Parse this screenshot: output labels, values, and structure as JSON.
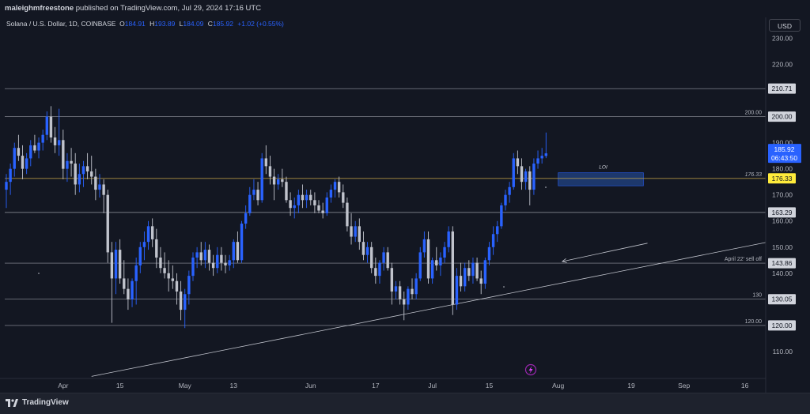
{
  "header": {
    "author": "maleighmfreestone",
    "published_text": "published on TradingView.com, Jul 29, 2024 17:16 UTC"
  },
  "symbol": {
    "title": "Solana / U.S. Dollar, 1D, COINBASE",
    "open_label": "O",
    "open": "184.91",
    "high_label": "H",
    "high": "193.89",
    "low_label": "L",
    "low": "184.09",
    "close_label": "C",
    "close": "185.92",
    "change": "+1.02 (+0.55%)"
  },
  "currency_button": "USD",
  "footer": {
    "brand": "TradingView"
  },
  "colors": {
    "background": "#131722",
    "up_candle": "#2962ff",
    "down_candle": "#c0c3cc",
    "level_line": "#c0c3cc",
    "key_level_line": "#c8a84a",
    "current_price_badge": "#2962ff",
    "key_level_badge": "#ffeb3b",
    "loi_box": "#1e3a70"
  },
  "chart_data": {
    "type": "candlestick",
    "symbol": "Solana / U.S. Dollar",
    "interval": "1D",
    "exchange": "COINBASE",
    "ylim": [
      100,
      238
    ],
    "y_ticks": [
      "230.00",
      "220.00",
      "210.00",
      "200.00",
      "190.00",
      "180.00",
      "170.00",
      "160.00",
      "150.00",
      "140.00",
      "120.00",
      "110.00"
    ],
    "x_ticks": [
      "Apr",
      "15",
      "May",
      "13",
      "Jun",
      "17",
      "Jul",
      "15",
      "Aug",
      "19",
      "Sep",
      "16"
    ],
    "current_price": {
      "value": "185.92",
      "countdown": "06:43:50"
    },
    "levels": [
      {
        "value": 210.71,
        "label": "",
        "badge": "210.71",
        "style": "white"
      },
      {
        "value": 200.0,
        "label": "200.00",
        "badge": "200.00",
        "style": "white"
      },
      {
        "value": 176.33,
        "label": "176.33",
        "badge": "176.33",
        "style": "key"
      },
      {
        "value": 163.29,
        "label": "",
        "badge": "163.29",
        "style": "white"
      },
      {
        "value": 143.86,
        "label": "April 22' sell off",
        "badge": "143.86",
        "style": "white"
      },
      {
        "value": 130.05,
        "label": "130",
        "badge": "130.05",
        "style": "white"
      },
      {
        "value": 120.0,
        "label": "120.00",
        "badge": "120.00",
        "style": "white"
      }
    ],
    "zone": {
      "label": "LOI",
      "top": 178.5,
      "bottom": 173.5,
      "from_date": "2024-08-01",
      "to_date": "2024-08-22"
    },
    "trendline": {
      "from": [
        "2024-04-08",
        100.5
      ],
      "to": [
        "2024-09-30",
        154.5
      ]
    },
    "arrow": {
      "from": [
        "2024-08-23",
        151.5
      ],
      "to": [
        "2024-08-02",
        144.5
      ]
    },
    "candles": [
      [
        "2024-03-18",
        172,
        178,
        165,
        175
      ],
      [
        "2024-03-19",
        175,
        182,
        170,
        180
      ],
      [
        "2024-03-20",
        180,
        190,
        177,
        188
      ],
      [
        "2024-03-21",
        188,
        193,
        183,
        185
      ],
      [
        "2024-03-22",
        185,
        189,
        176,
        180
      ],
      [
        "2024-03-23",
        180,
        186,
        178,
        184
      ],
      [
        "2024-03-24",
        184,
        191,
        181,
        189
      ],
      [
        "2024-03-25",
        189,
        193,
        186,
        187
      ],
      [
        "2024-03-26",
        187,
        192,
        184,
        190
      ],
      [
        "2024-03-27",
        190,
        195,
        187,
        193
      ],
      [
        "2024-03-28",
        193,
        202,
        191,
        200
      ],
      [
        "2024-03-29",
        200,
        204,
        190,
        192
      ],
      [
        "2024-03-30",
        192,
        196,
        186,
        189
      ],
      [
        "2024-03-31",
        189,
        203,
        185,
        191
      ],
      [
        "2024-04-01",
        191,
        195,
        176,
        180
      ],
      [
        "2024-04-02",
        180,
        186,
        175,
        183
      ],
      [
        "2024-04-03",
        183,
        188,
        177,
        182
      ],
      [
        "2024-04-04",
        182,
        186,
        170,
        174
      ],
      [
        "2024-04-05",
        174,
        182,
        171,
        178
      ],
      [
        "2024-04-06",
        178,
        183,
        173,
        181
      ],
      [
        "2024-04-07",
        181,
        186,
        176,
        179
      ],
      [
        "2024-04-08",
        179,
        185,
        174,
        177
      ],
      [
        "2024-04-09",
        177,
        180,
        168,
        172
      ],
      [
        "2024-04-10",
        172,
        178,
        169,
        174
      ],
      [
        "2024-04-11",
        174,
        176,
        163,
        170
      ],
      [
        "2024-04-12",
        170,
        172,
        144,
        148
      ],
      [
        "2024-04-13",
        148,
        152,
        121,
        138
      ],
      [
        "2024-04-14",
        138,
        152,
        132,
        149
      ],
      [
        "2024-04-15",
        149,
        153,
        136,
        138
      ],
      [
        "2024-04-16",
        138,
        145,
        132,
        134
      ],
      [
        "2024-04-17",
        134,
        138,
        126,
        130
      ],
      [
        "2024-04-18",
        130,
        138,
        127,
        137
      ],
      [
        "2024-04-19",
        137,
        146,
        128,
        143
      ],
      [
        "2024-04-20",
        143,
        152,
        140,
        150
      ],
      [
        "2024-04-21",
        150,
        156,
        145,
        152
      ],
      [
        "2024-04-22",
        152,
        160,
        149,
        158
      ],
      [
        "2024-04-23",
        158,
        161,
        150,
        153
      ],
      [
        "2024-04-24",
        153,
        157,
        142,
        146
      ],
      [
        "2024-04-25",
        146,
        150,
        140,
        142
      ],
      [
        "2024-04-26",
        142,
        148,
        138,
        140
      ],
      [
        "2024-04-27",
        140,
        145,
        133,
        138
      ],
      [
        "2024-04-28",
        138,
        143,
        134,
        137
      ],
      [
        "2024-04-29",
        137,
        140,
        128,
        133
      ],
      [
        "2024-04-30",
        133,
        137,
        122,
        126
      ],
      [
        "2024-05-01",
        126,
        134,
        119,
        132
      ],
      [
        "2024-05-02",
        132,
        141,
        128,
        139
      ],
      [
        "2024-05-03",
        139,
        148,
        137,
        146
      ],
      [
        "2024-05-04",
        146,
        150,
        142,
        148
      ],
      [
        "2024-05-05",
        148,
        152,
        143,
        145
      ],
      [
        "2024-05-06",
        145,
        152,
        142,
        149
      ],
      [
        "2024-05-07",
        149,
        151,
        141,
        144
      ],
      [
        "2024-05-08",
        144,
        147,
        139,
        142
      ],
      [
        "2024-05-09",
        142,
        150,
        140,
        147
      ],
      [
        "2024-05-10",
        147,
        150,
        141,
        144
      ],
      [
        "2024-05-11",
        144,
        147,
        140,
        143
      ],
      [
        "2024-05-12",
        143,
        147,
        141,
        145
      ],
      [
        "2024-05-13",
        145,
        153,
        142,
        152
      ],
      [
        "2024-05-14",
        152,
        156,
        144,
        145
      ],
      [
        "2024-05-15",
        145,
        160,
        144,
        159
      ],
      [
        "2024-05-16",
        159,
        166,
        157,
        163
      ],
      [
        "2024-05-17",
        163,
        173,
        162,
        170
      ],
      [
        "2024-05-18",
        170,
        176,
        168,
        172
      ],
      [
        "2024-05-19",
        172,
        175,
        166,
        168
      ],
      [
        "2024-05-20",
        168,
        186,
        167,
        184
      ],
      [
        "2024-05-21",
        184,
        189,
        178,
        181
      ],
      [
        "2024-05-22",
        181,
        185,
        174,
        177
      ],
      [
        "2024-05-23",
        177,
        180,
        168,
        174
      ],
      [
        "2024-05-24",
        174,
        178,
        172,
        176
      ],
      [
        "2024-05-25",
        176,
        180,
        173,
        175
      ],
      [
        "2024-05-26",
        175,
        177,
        167,
        168
      ],
      [
        "2024-05-27",
        168,
        171,
        162,
        165
      ],
      [
        "2024-05-28",
        165,
        169,
        161,
        166
      ],
      [
        "2024-05-29",
        166,
        172,
        163,
        170
      ],
      [
        "2024-05-30",
        170,
        174,
        165,
        168
      ],
      [
        "2024-05-31",
        168,
        172,
        165,
        170
      ],
      [
        "2024-06-01",
        170,
        172,
        166,
        168
      ],
      [
        "2024-06-02",
        168,
        171,
        163,
        166
      ],
      [
        "2024-06-03",
        166,
        168,
        163,
        164
      ],
      [
        "2024-06-04",
        164,
        167,
        161,
        163
      ],
      [
        "2024-06-05",
        163,
        171,
        162,
        169
      ],
      [
        "2024-06-06",
        169,
        174,
        167,
        172
      ],
      [
        "2024-06-07",
        172,
        176,
        169,
        175
      ],
      [
        "2024-06-08",
        175,
        177,
        169,
        171
      ],
      [
        "2024-06-09",
        171,
        174,
        165,
        167
      ],
      [
        "2024-06-10",
        167,
        169,
        156,
        158
      ],
      [
        "2024-06-11",
        158,
        163,
        151,
        154
      ],
      [
        "2024-06-12",
        154,
        160,
        152,
        158
      ],
      [
        "2024-06-13",
        158,
        161,
        149,
        152
      ],
      [
        "2024-06-14",
        152,
        156,
        145,
        147
      ],
      [
        "2024-06-15",
        147,
        152,
        144,
        150
      ],
      [
        "2024-06-16",
        150,
        152,
        140,
        142
      ],
      [
        "2024-06-17",
        142,
        146,
        136,
        139
      ],
      [
        "2024-06-18",
        139,
        145,
        136,
        144
      ],
      [
        "2024-06-19",
        144,
        150,
        141,
        148
      ],
      [
        "2024-06-20",
        148,
        150,
        141,
        142
      ],
      [
        "2024-06-21",
        142,
        144,
        128,
        133
      ],
      [
        "2024-06-22",
        133,
        137,
        130,
        135
      ],
      [
        "2024-06-23",
        135,
        137,
        128,
        130
      ],
      [
        "2024-06-24",
        130,
        133,
        122,
        128
      ],
      [
        "2024-06-25",
        128,
        135,
        126,
        134
      ],
      [
        "2024-06-26",
        134,
        138,
        130,
        132
      ],
      [
        "2024-06-27",
        132,
        140,
        130,
        138
      ],
      [
        "2024-06-28",
        138,
        150,
        137,
        148
      ],
      [
        "2024-06-29",
        148,
        156,
        146,
        153
      ],
      [
        "2024-06-30",
        153,
        156,
        136,
        138
      ],
      [
        "2024-07-01",
        138,
        146,
        136,
        145
      ],
      [
        "2024-07-02",
        145,
        150,
        141,
        143
      ],
      [
        "2024-07-03",
        143,
        148,
        139,
        146
      ],
      [
        "2024-07-04",
        146,
        152,
        144,
        150
      ],
      [
        "2024-07-05",
        150,
        158,
        148,
        156
      ],
      [
        "2024-07-06",
        156,
        158,
        124,
        128
      ],
      [
        "2024-07-07",
        128,
        142,
        126,
        139
      ],
      [
        "2024-07-08",
        139,
        144,
        133,
        135
      ],
      [
        "2024-07-09",
        135,
        144,
        133,
        142
      ],
      [
        "2024-07-10",
        142,
        145,
        137,
        139
      ],
      [
        "2024-07-11",
        139,
        146,
        136,
        144
      ],
      [
        "2024-07-12",
        144,
        146,
        137,
        138
      ],
      [
        "2024-07-13",
        138,
        141,
        132,
        136
      ],
      [
        "2024-07-14",
        136,
        146,
        134,
        145
      ],
      [
        "2024-07-15",
        145,
        152,
        143,
        150
      ],
      [
        "2024-07-16",
        150,
        158,
        147,
        155
      ],
      [
        "2024-07-17",
        155,
        160,
        152,
        158
      ],
      [
        "2024-07-18",
        158,
        167,
        157,
        166
      ],
      [
        "2024-07-19",
        166,
        172,
        164,
        170
      ],
      [
        "2024-07-20",
        170,
        175,
        167,
        173
      ],
      [
        "2024-07-21",
        173,
        186,
        172,
        184
      ],
      [
        "2024-07-22",
        184,
        187,
        178,
        181
      ],
      [
        "2024-07-23",
        181,
        184,
        172,
        175
      ],
      [
        "2024-07-24",
        175,
        180,
        172,
        179
      ],
      [
        "2024-07-25",
        179,
        181,
        166,
        172
      ],
      [
        "2024-07-26",
        172,
        184,
        170,
        182
      ],
      [
        "2024-07-27",
        182,
        187,
        180,
        184
      ],
      [
        "2024-07-28",
        184,
        188,
        182,
        185
      ],
      [
        "2024-07-29",
        184.91,
        193.89,
        184.09,
        185.92
      ]
    ]
  }
}
